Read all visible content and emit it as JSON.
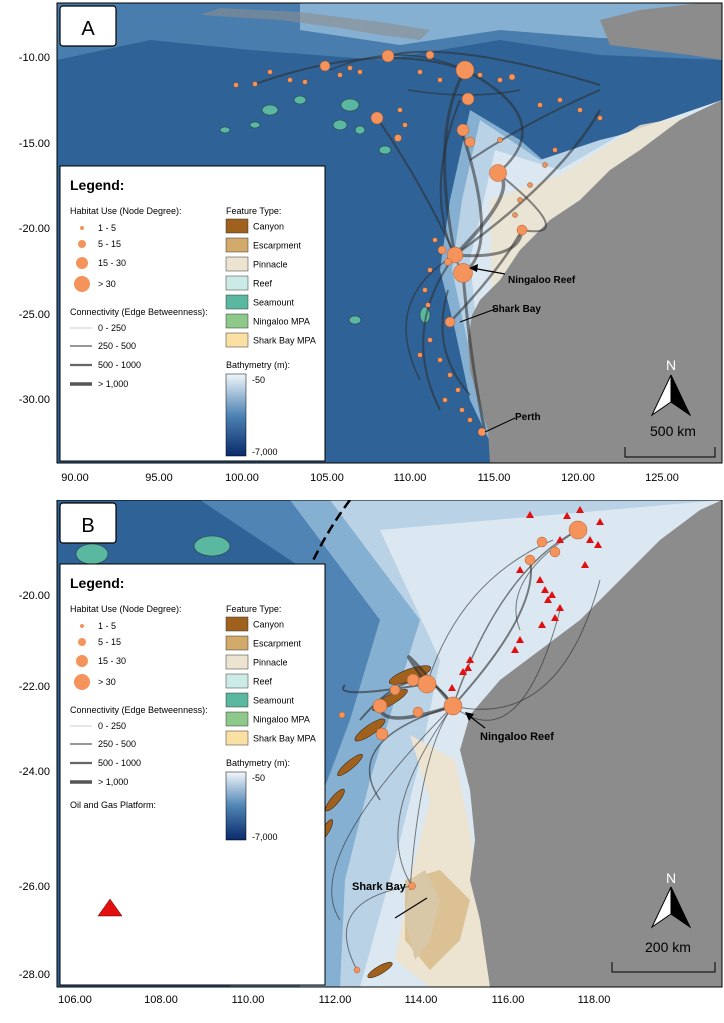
{
  "colors": {
    "deep_ocean": "#2f6296",
    "ocean_mid": "#4f84b4",
    "ocean_light": "#86b0d2",
    "ocean_shelf": "#b9d2e6",
    "ocean_shallow": "#dbe8f2",
    "land": "#8c8c8c",
    "node": "#f4935b",
    "platform": "#e10f0f",
    "canyon": "#a0611f",
    "escarpment": "#d1aa6c",
    "pinnacle": "#ece3d0",
    "reef": "#cdebe6",
    "seamount": "#5bb8a0",
    "ningaloo_mpa": "#8ec88a",
    "sharkbay_mpa": "#fbe0a4"
  },
  "legend": {
    "title": "Legend:",
    "habitat_title": "Habitat Use (Node Degree):",
    "habitat_items": [
      "1 - 5",
      "5 - 15",
      "15 - 30",
      "> 30"
    ],
    "connectivity_title": "Connectivity (Edge Betweenness):",
    "connectivity_items": [
      "0 - 250",
      "250 - 500",
      "500 - 1000",
      "> 1,000"
    ],
    "feature_title": "Feature Type:",
    "feature_items": [
      {
        "label": "Canyon",
        "color": "#a0611f"
      },
      {
        "label": "Escarpment",
        "color": "#d1aa6c"
      },
      {
        "label": "Pinnacle",
        "color": "#ece3d0"
      },
      {
        "label": "Reef",
        "color": "#cdebe6"
      },
      {
        "label": "Seamount",
        "color": "#5bb8a0"
      },
      {
        "label": "Ningaloo MPA",
        "color": "#8ec88a"
      },
      {
        "label": "Shark Bay MPA",
        "color": "#fbe0a4"
      }
    ],
    "bathymetry_title": "Bathymetry (m):",
    "bathymetry_top": "-50",
    "bathymetry_bottom": "-7,000",
    "platform_title": "Oil and Gas Platform:"
  },
  "panel_a": {
    "label": "A",
    "y_ticks": [
      "-10.00",
      "-15.00",
      "-20.00",
      "-25.00",
      "-30.00"
    ],
    "x_ticks": [
      "90.00",
      "95.00",
      "100.00",
      "105.00",
      "110.00",
      "115.00",
      "120.00",
      "125.00"
    ],
    "places": {
      "ningaloo": "Ningaloo Reef",
      "sharkbay": "Shark Bay",
      "perth": "Perth"
    },
    "north": "N",
    "scale": "500 km"
  },
  "panel_b": {
    "label": "B",
    "y_ticks": [
      "-20.00",
      "-22.00",
      "-24.00",
      "-26.00",
      "-28.00"
    ],
    "x_ticks": [
      "106.00",
      "108.00",
      "110.00",
      "112.00",
      "114.00",
      "116.00",
      "118.00"
    ],
    "places": {
      "ningaloo": "Ningaloo Reef",
      "sharkbay": "Shark Bay"
    },
    "north": "N",
    "scale": "200 km"
  }
}
